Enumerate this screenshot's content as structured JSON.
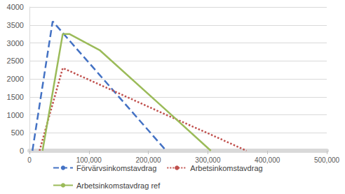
{
  "chart_data": {
    "type": "line",
    "x": [
      5000,
      17000,
      22000,
      39000,
      56000,
      67000,
      118000,
      230000,
      305000,
      365000
    ],
    "xlim": [
      0,
      500000
    ],
    "xticks": [
      0,
      {
        "value": 100000,
        "label": "100,000"
      },
      {
        "value": 200000,
        "label": "200,000"
      },
      {
        "value": 300000,
        "label": "300,000"
      },
      {
        "value": 400000,
        "label": "400,000"
      },
      {
        "value": 500000,
        "label": "500,000"
      }
    ],
    "ylim": [
      0,
      4000
    ],
    "yticks": [
      0,
      500,
      1000,
      1500,
      2000,
      2500,
      3000,
      3500,
      4000
    ],
    "grid": true,
    "legend": "bottom",
    "series": [
      {
        "name": "Förvärvsinkomstavdrag",
        "color": "#4472c4",
        "line_style": "dashed",
        "values": [
          0,
          1270,
          1800,
          3600,
          3280,
          3070,
          2110,
          0,
          null,
          null
        ]
      },
      {
        "name": "Arbetsinkomstavdrag",
        "color": "#c0504d",
        "line_style": "dotted",
        "values": [
          null,
          0,
          300,
          1300,
          2300,
          2220,
          1840,
          1000,
          450,
          0
        ]
      },
      {
        "name": "Arbetsinkomstavdrag ref",
        "color": "#9bbb59",
        "line_style": "solid",
        "values": [
          null,
          null,
          0,
          1620,
          3250,
          3250,
          2800,
          1130,
          0,
          null
        ]
      }
    ]
  }
}
